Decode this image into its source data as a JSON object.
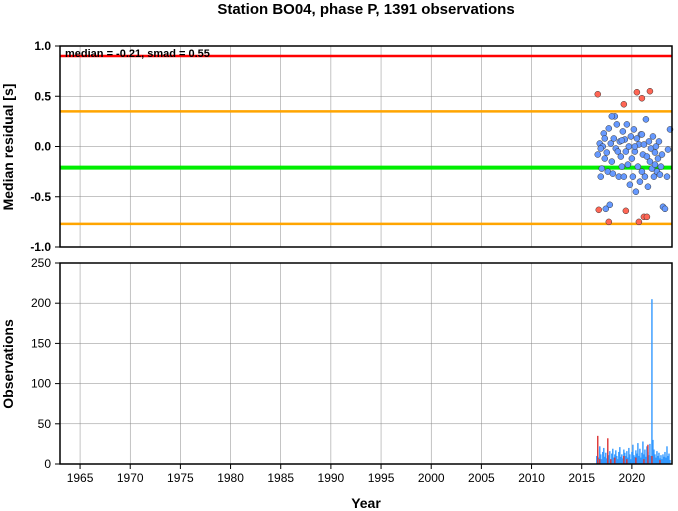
{
  "chart_data": [
    {
      "type": "scatter",
      "title": "Station BO04, phase P, 1391 observations",
      "ylabel": "Median residual [s]",
      "xlim": [
        1963,
        2024
      ],
      "ylim": [
        -1.0,
        1.0
      ],
      "yticks": [
        "-1.0",
        "-0.5",
        "0.0",
        "0.5",
        "1.0"
      ],
      "annotation": "median = -0.21, smad = 0.55",
      "grid": true,
      "reference_lines": [
        {
          "value": 0.9,
          "color": "#ff0000"
        },
        {
          "value": 0.35,
          "color": "#ffa500"
        },
        {
          "value": -0.21,
          "color": "#00ee00"
        },
        {
          "value": -0.77,
          "color": "#ffa500"
        }
      ],
      "series": [
        {
          "color": "#6699ff",
          "points": [
            [
              2016.6,
              -0.08
            ],
            [
              2016.8,
              0.03
            ],
            [
              2016.9,
              -0.3
            ],
            [
              2017.0,
              -0.22
            ],
            [
              2017.1,
              0.0
            ],
            [
              2017.2,
              0.13
            ],
            [
              2017.3,
              -0.12
            ],
            [
              2017.4,
              -0.62
            ],
            [
              2017.5,
              -0.06
            ],
            [
              2017.6,
              -0.25
            ],
            [
              2017.7,
              0.18
            ],
            [
              2017.8,
              -0.58
            ],
            [
              2017.9,
              0.03
            ],
            [
              2018.0,
              -0.15
            ],
            [
              2018.1,
              -0.27
            ],
            [
              2018.2,
              0.08
            ],
            [
              2018.3,
              0.3
            ],
            [
              2018.4,
              -0.02
            ],
            [
              2018.5,
              0.22
            ],
            [
              2018.6,
              -0.05
            ],
            [
              2018.7,
              -0.3
            ],
            [
              2018.8,
              0.05
            ],
            [
              2018.9,
              -0.1
            ],
            [
              2019.0,
              -0.2
            ],
            [
              2019.1,
              0.15
            ],
            [
              2019.2,
              -0.3
            ],
            [
              2019.3,
              0.07
            ],
            [
              2019.4,
              -0.05
            ],
            [
              2019.5,
              0.22
            ],
            [
              2019.6,
              -0.18
            ],
            [
              2019.7,
              0.0
            ],
            [
              2019.8,
              -0.38
            ],
            [
              2019.9,
              0.1
            ],
            [
              2020.0,
              -0.12
            ],
            [
              2020.1,
              -0.3
            ],
            [
              2020.2,
              0.17
            ],
            [
              2020.3,
              -0.05
            ],
            [
              2020.4,
              -0.45
            ],
            [
              2020.5,
              0.08
            ],
            [
              2020.6,
              -0.2
            ],
            [
              2020.7,
              0.02
            ],
            [
              2020.8,
              -0.35
            ],
            [
              2020.9,
              0.12
            ],
            [
              2021.0,
              -0.25
            ],
            [
              2021.1,
              -0.08
            ],
            [
              2021.2,
              0.02
            ],
            [
              2021.3,
              -0.3
            ],
            [
              2021.4,
              0.27
            ],
            [
              2021.5,
              -0.1
            ],
            [
              2021.6,
              -0.4
            ],
            [
              2021.7,
              0.05
            ],
            [
              2021.8,
              -0.15
            ],
            [
              2021.9,
              -0.02
            ],
            [
              2022.0,
              -0.22
            ],
            [
              2022.1,
              0.1
            ],
            [
              2022.2,
              -0.3
            ],
            [
              2022.3,
              -0.06
            ],
            [
              2022.4,
              0.0
            ],
            [
              2022.5,
              -0.25
            ],
            [
              2022.6,
              -0.12
            ],
            [
              2022.7,
              0.05
            ],
            [
              2022.8,
              -0.28
            ],
            [
              2022.9,
              -0.2
            ],
            [
              2023.0,
              -0.08
            ],
            [
              2023.1,
              -0.6
            ],
            [
              2023.3,
              -0.62
            ],
            [
              2023.5,
              -0.3
            ],
            [
              2023.6,
              -0.03
            ],
            [
              2023.8,
              0.17
            ],
            [
              2016.9,
              -0.02
            ],
            [
              2017.3,
              0.08
            ],
            [
              2018.0,
              0.3
            ],
            [
              2019.0,
              0.06
            ],
            [
              2020.3,
              0.0
            ],
            [
              2021.0,
              0.12
            ],
            [
              2022.3,
              -0.18
            ]
          ]
        },
        {
          "color": "#ff6655",
          "points": [
            [
              2016.6,
              0.52
            ],
            [
              2016.7,
              -0.63
            ],
            [
              2017.7,
              -0.75
            ],
            [
              2019.2,
              0.42
            ],
            [
              2019.4,
              -0.64
            ],
            [
              2020.5,
              0.54
            ],
            [
              2020.7,
              -0.75
            ],
            [
              2021.0,
              0.48
            ],
            [
              2021.2,
              -0.7
            ],
            [
              2021.5,
              -0.7
            ],
            [
              2021.8,
              0.55
            ]
          ]
        }
      ]
    },
    {
      "type": "bar",
      "xlabel": "Year",
      "ylabel": "Observations",
      "xlim": [
        1963,
        2024
      ],
      "ylim": [
        0,
        250
      ],
      "yticks": [
        "0",
        "50",
        "100",
        "150",
        "200",
        "250"
      ],
      "xticks": [
        "1965",
        "1970",
        "1975",
        "1980",
        "1985",
        "1990",
        "1995",
        "2000",
        "2005",
        "2010",
        "2015",
        "2020"
      ],
      "grid": true,
      "blue_color": "#3399ff",
      "red_color": "#dd3333",
      "blue_bars": [
        [
          2016.5,
          10
        ],
        [
          2016.6,
          18
        ],
        [
          2016.7,
          8
        ],
        [
          2016.8,
          22
        ],
        [
          2016.9,
          12
        ],
        [
          2017.0,
          6
        ],
        [
          2017.1,
          15
        ],
        [
          2017.2,
          20
        ],
        [
          2017.3,
          9
        ],
        [
          2017.4,
          14
        ],
        [
          2017.5,
          7
        ],
        [
          2017.6,
          18
        ],
        [
          2017.7,
          11
        ],
        [
          2017.8,
          16
        ],
        [
          2017.9,
          5
        ],
        [
          2018.0,
          13
        ],
        [
          2018.1,
          19
        ],
        [
          2018.2,
          8
        ],
        [
          2018.3,
          12
        ],
        [
          2018.4,
          17
        ],
        [
          2018.5,
          10
        ],
        [
          2018.6,
          6
        ],
        [
          2018.7,
          15
        ],
        [
          2018.8,
          21
        ],
        [
          2018.9,
          9
        ],
        [
          2019.0,
          12
        ],
        [
          2019.1,
          7
        ],
        [
          2019.2,
          18
        ],
        [
          2019.3,
          14
        ],
        [
          2019.4,
          10
        ],
        [
          2019.5,
          16
        ],
        [
          2019.6,
          8
        ],
        [
          2019.7,
          20
        ],
        [
          2019.8,
          12
        ],
        [
          2019.9,
          6
        ],
        [
          2020.0,
          15
        ],
        [
          2020.1,
          24
        ],
        [
          2020.2,
          11
        ],
        [
          2020.3,
          9
        ],
        [
          2020.4,
          17
        ],
        [
          2020.5,
          13
        ],
        [
          2020.6,
          26
        ],
        [
          2020.7,
          10
        ],
        [
          2020.8,
          19
        ],
        [
          2020.9,
          8
        ],
        [
          2021.0,
          14
        ],
        [
          2021.1,
          28
        ],
        [
          2021.2,
          12
        ],
        [
          2021.3,
          18
        ],
        [
          2021.4,
          9
        ],
        [
          2021.5,
          22
        ],
        [
          2021.6,
          15
        ],
        [
          2021.7,
          11
        ],
        [
          2021.8,
          25
        ],
        [
          2021.9,
          10
        ],
        [
          2022.0,
          205
        ],
        [
          2022.1,
          30
        ],
        [
          2022.2,
          18
        ],
        [
          2022.3,
          12
        ],
        [
          2022.4,
          8
        ],
        [
          2022.5,
          16
        ],
        [
          2022.6,
          10
        ],
        [
          2022.7,
          14
        ],
        [
          2022.8,
          7
        ],
        [
          2022.9,
          11
        ],
        [
          2023.0,
          6
        ],
        [
          2023.1,
          12
        ],
        [
          2023.2,
          9
        ],
        [
          2023.3,
          15
        ],
        [
          2023.4,
          8
        ],
        [
          2023.5,
          22
        ],
        [
          2023.6,
          10
        ],
        [
          2023.7,
          13
        ],
        [
          2023.8,
          5
        ]
      ],
      "red_bars": [
        [
          2016.6,
          35
        ],
        [
          2016.8,
          6
        ],
        [
          2017.6,
          32
        ],
        [
          2017.9,
          6
        ],
        [
          2018.3,
          8
        ],
        [
          2019.2,
          10
        ],
        [
          2019.5,
          6
        ],
        [
          2020.4,
          8
        ],
        [
          2021.2,
          6
        ],
        [
          2021.6,
          24
        ],
        [
          2022.0,
          10
        ],
        [
          2022.8,
          5
        ]
      ]
    }
  ]
}
